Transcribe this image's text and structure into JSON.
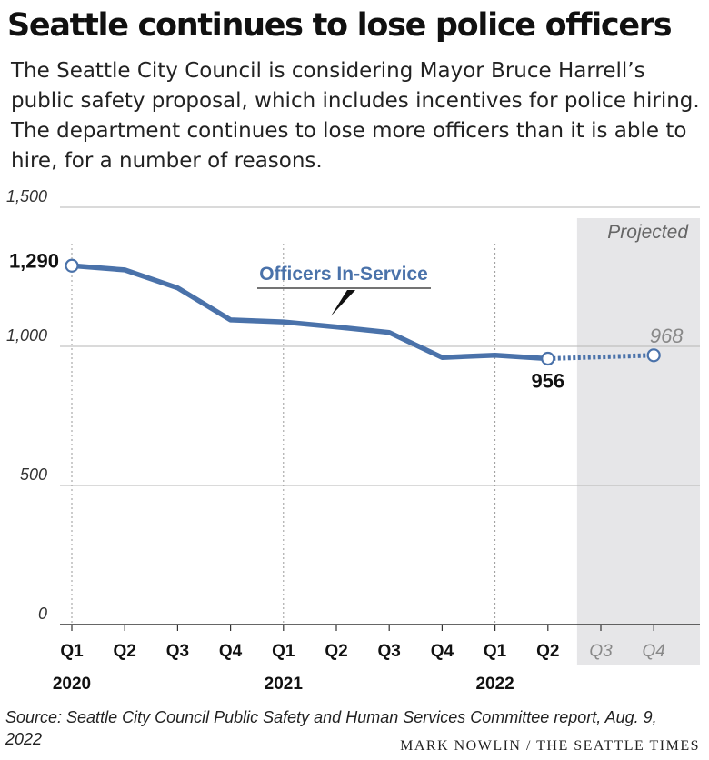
{
  "title": "Seattle continues to lose police officers",
  "subtitle": "The Seattle City Council is considering Mayor Bruce Harrell’s public safety proposal, which includes incentives for police hiring. The department continues to lose more officers than it is able to hire, for a number of reasons.",
  "source": "Source: Seattle City Council Public Safety and Human Services Committee report, Aug. 9, 2022",
  "credit": "MARK NOWLIN / THE SEATTLE TIMES",
  "colors": {
    "line": "#4a72aa",
    "projected_bg": "#e6e6e8",
    "grid": "#b5b5b5",
    "projected_text": "#888888"
  },
  "chart_data": {
    "type": "line",
    "title": "",
    "xlabel": "",
    "ylabel": "",
    "ylim": [
      0,
      1500
    ],
    "yticks": [
      "0",
      "500",
      "1,000",
      "1,500"
    ],
    "grid": true,
    "categories": [
      "Q1",
      "Q2",
      "Q3",
      "Q4",
      "Q1",
      "Q2",
      "Q3",
      "Q4",
      "Q1",
      "Q2",
      "Q3",
      "Q4"
    ],
    "years": [
      {
        "label": "2020",
        "start_index": 0
      },
      {
        "label": "2021",
        "start_index": 4
      },
      {
        "label": "2022",
        "start_index": 8
      }
    ],
    "projected_label": "Projected",
    "projected_from_index": 10,
    "series": [
      {
        "name": "Officers In-Service",
        "values": [
          1290,
          1275,
          1210,
          1095,
          1088,
          1070,
          1050,
          960,
          968,
          956,
          null,
          null
        ]
      },
      {
        "name": "Projected",
        "values": [
          null,
          null,
          null,
          null,
          null,
          null,
          null,
          null,
          null,
          956,
          null,
          968
        ]
      }
    ],
    "annotations": [
      {
        "text": "1,290",
        "index": 0,
        "value": 1290
      },
      {
        "text": "956",
        "index": 9,
        "value": 956
      },
      {
        "text": "968",
        "index": 11,
        "value": 968
      }
    ]
  }
}
